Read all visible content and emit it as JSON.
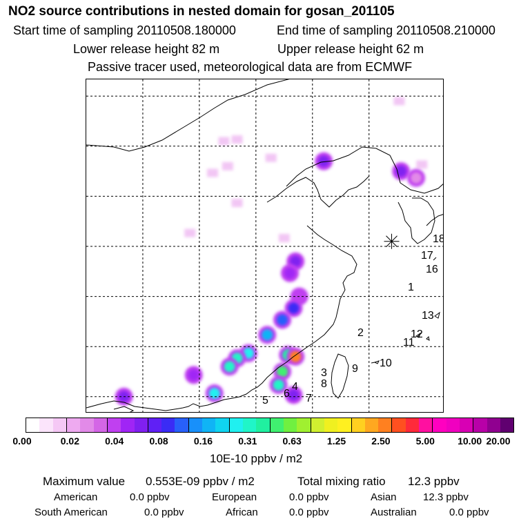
{
  "header": {
    "title": "NO2 source contributions in nested domain for gosan_201105",
    "start_label": "Start time of sampling 20110508.180000",
    "end_label": "End time of sampling 20110508.210000",
    "lower_release": "Lower release height   82 m",
    "upper_release": "Upper release height   62 m",
    "note": "Passive tracer used, meteorological data are from ECMWF"
  },
  "chart_data": {
    "type": "heatmap",
    "title": "NO2 source contributions in nested domain for gosan_201105",
    "colorbar": {
      "ticks": [
        "0.00",
        "0.02",
        "0.04",
        "0.08",
        "0.16",
        "0.31",
        "0.63",
        "1.25",
        "2.50",
        "5.00",
        "10.00",
        "20.00"
      ],
      "colors": [
        "#ffffff",
        "#fbe4fb",
        "#f5c8f5",
        "#eeaaf0",
        "#e28ae8",
        "#d466e6",
        "#c040f0",
        "#a025f5",
        "#8020f0",
        "#6020f5",
        "#3a2cf5",
        "#2860fa",
        "#1890fa",
        "#10b4f5",
        "#10d4f0",
        "#20f0f0",
        "#20f5c8",
        "#20f0a0",
        "#40f070",
        "#70f040",
        "#a0f030",
        "#d0f030",
        "#f0f020",
        "#fff020",
        "#ffd020",
        "#ffa820",
        "#ff8020",
        "#ff5020",
        "#ff2a3a",
        "#ff10a0",
        "#ff00c0",
        "#f000c0",
        "#d800b4",
        "#b800a8",
        "#900090",
        "#600070"
      ],
      "unit": "10E-10 ppbv / m2"
    },
    "hotspots": [
      {
        "lon": 122.6,
        "lat": 38.1,
        "value": 0.06
      },
      {
        "lon": 126.7,
        "lat": 37.5,
        "value": 0.06
      },
      {
        "lon": 127.5,
        "lat": 37.1,
        "value": 0.03
      },
      {
        "lon": 121.1,
        "lat": 32.1,
        "value": 0.06
      },
      {
        "lon": 120.8,
        "lat": 31.4,
        "value": 0.05
      },
      {
        "lon": 121.3,
        "lat": 30.0,
        "value": 0.04
      },
      {
        "lon": 121.0,
        "lat": 29.3,
        "value": 0.1
      },
      {
        "lon": 120.4,
        "lat": 28.6,
        "value": 0.12
      },
      {
        "lon": 119.6,
        "lat": 27.7,
        "value": 0.16
      },
      {
        "lon": 118.6,
        "lat": 26.6,
        "value": 0.25
      },
      {
        "lon": 118.0,
        "lat": 26.3,
        "value": 0.35
      },
      {
        "lon": 117.6,
        "lat": 25.8,
        "value": 0.3
      },
      {
        "lon": 120.7,
        "lat": 26.5,
        "value": 0.45
      },
      {
        "lon": 121.1,
        "lat": 26.4,
        "value": 3.0
      },
      {
        "lon": 120.4,
        "lat": 25.5,
        "value": 0.5
      },
      {
        "lon": 120.2,
        "lat": 24.7,
        "value": 0.35
      },
      {
        "lon": 121.0,
        "lat": 24.1,
        "value": 0.06
      },
      {
        "lon": 116.8,
        "lat": 24.2,
        "value": 0.25
      },
      {
        "lon": 115.7,
        "lat": 25.3,
        "value": 0.05
      },
      {
        "lon": 112.0,
        "lat": 24.0,
        "value": 0.06
      }
    ],
    "faint_spots": [
      {
        "lon": 117.3,
        "lat": 39.3
      },
      {
        "lon": 118.0,
        "lat": 39.4
      },
      {
        "lon": 119.8,
        "lat": 38.3
      },
      {
        "lon": 117.5,
        "lat": 37.8
      },
      {
        "lon": 116.7,
        "lat": 37.4
      },
      {
        "lon": 118.0,
        "lat": 35.6
      },
      {
        "lon": 115.5,
        "lat": 33.8
      },
      {
        "lon": 120.5,
        "lat": 33.5
      },
      {
        "lon": 126.6,
        "lat": 41.7
      },
      {
        "lon": 127.8,
        "lat": 37.9
      }
    ],
    "source_region_labels": [
      "1",
      "2",
      "3",
      "4",
      "5",
      "6",
      "7",
      "8",
      "9",
      "10",
      "11",
      "12",
      "13",
      "16",
      "17",
      "18"
    ],
    "receptor": {
      "name": "gosan",
      "lon": 126.2,
      "lat": 33.3
    },
    "map_extent": {
      "lon": [
        110,
        129
      ],
      "lat": [
        23,
        43
      ]
    },
    "grid_lines": {
      "lon": [
        113,
        116,
        119,
        122,
        125
      ],
      "lat": [
        24,
        27,
        30,
        33,
        36,
        39,
        42
      ]
    }
  },
  "summary": {
    "max_label": "Maximum value",
    "max_value": "0.553E-09 ppbv / m2",
    "total_label": "Total mixing ratio",
    "total_value": "12.3 ppbv",
    "regions": [
      {
        "name": "American",
        "value": "0.0 ppbv"
      },
      {
        "name": "European",
        "value": "0.0 ppbv"
      },
      {
        "name": "Asian",
        "value": "12.3 ppbv"
      },
      {
        "name": "South American",
        "value": "0.0 ppbv"
      },
      {
        "name": "African",
        "value": "0.0 ppbv"
      },
      {
        "name": "Australian",
        "value": "0.0 ppbv"
      }
    ]
  }
}
